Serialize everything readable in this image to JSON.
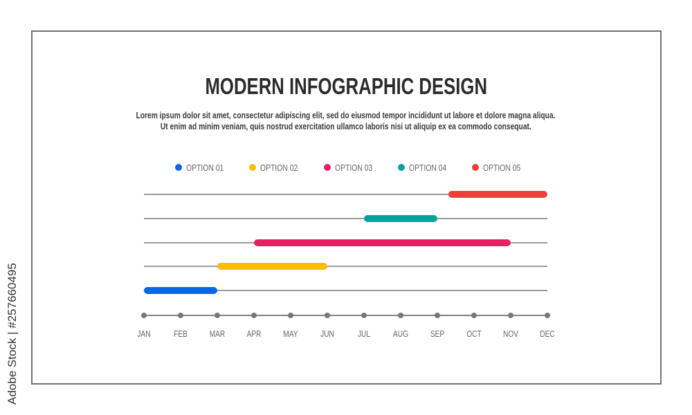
{
  "header": {
    "title": "MODERN INFOGRAPHIC DESIGN",
    "description_lines": [
      "Lorem ipsum dolor sit amet, consectetur adipiscing elit, sed do eiusmod tempor incididunt ut labore et dolore magna aliqua.",
      "Ut enim ad minim veniam, quis nostrud exercitation ullamco laboris nisi ut aliquip ex ea commodo consequat."
    ]
  },
  "watermark": "Adobe Stock | #257660495",
  "chart_data": {
    "type": "gantt",
    "title": "MODERN INFOGRAPHIC DESIGN",
    "categories": [
      "JAN",
      "FEB",
      "MAR",
      "APR",
      "MAY",
      "JUN",
      "JUL",
      "AUG",
      "SEP",
      "OCT",
      "NOV",
      "DEC"
    ],
    "legend_position": "top",
    "series": [
      {
        "name": "OPTION 01",
        "color": "#0766e0",
        "start": 0,
        "end": 2
      },
      {
        "name": "OPTION 02",
        "color": "#fbbc05",
        "start": 2,
        "end": 5
      },
      {
        "name": "OPTION 03",
        "color": "#ea1f5f",
        "start": 3,
        "end": 10
      },
      {
        "name": "OPTION 04",
        "color": "#06a1a0",
        "start": 6,
        "end": 8
      },
      {
        "name": "OPTION 05",
        "color": "#ea4037",
        "start": 8.3,
        "end": 11
      }
    ],
    "xlim": [
      0,
      11
    ]
  }
}
